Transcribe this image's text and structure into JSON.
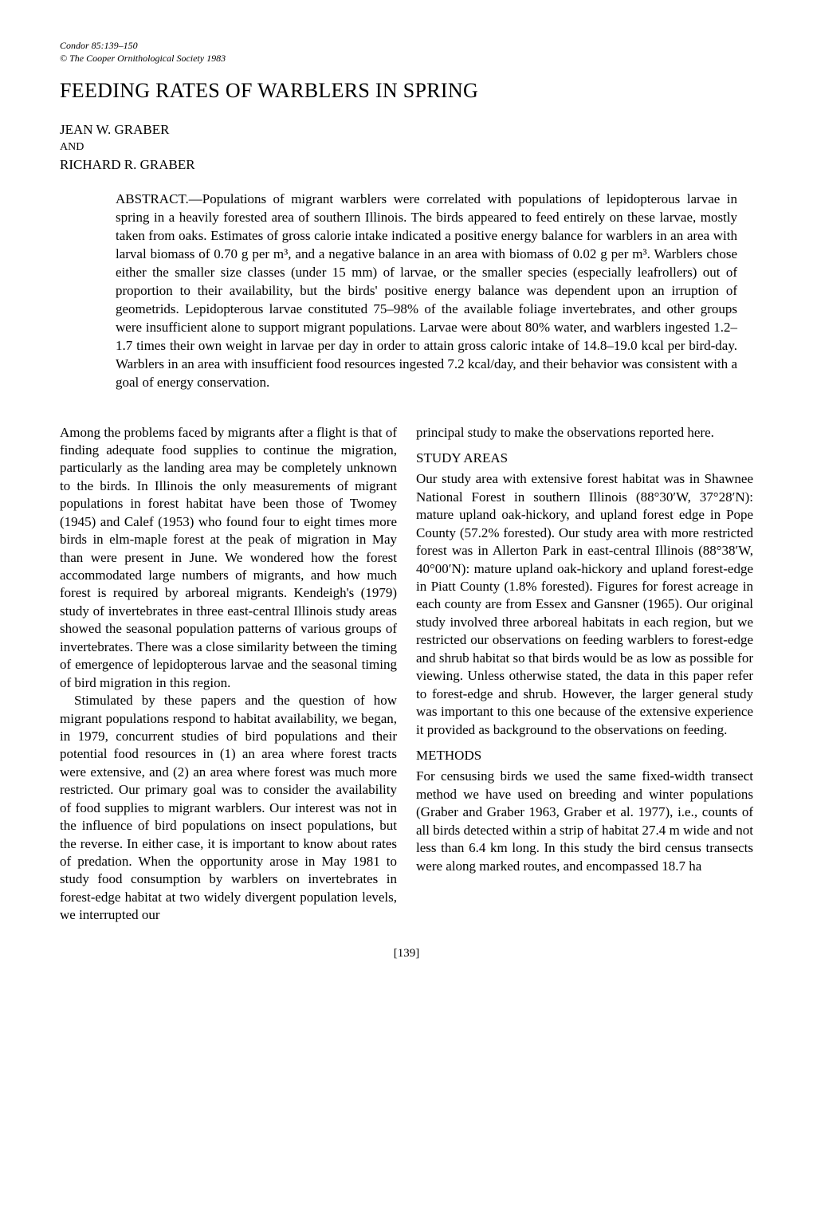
{
  "header": {
    "citation_line1": "Condor 85:139–150",
    "citation_line2": "© The Cooper Ornithological Society 1983"
  },
  "title": "FEEDING RATES OF WARBLERS IN SPRING",
  "authors": {
    "author1": "JEAN W. GRABER",
    "and": "AND",
    "author2": "RICHARD R. GRABER"
  },
  "abstract": "ABSTRACT.—Populations of migrant warblers were correlated with populations of lepidopterous larvae in spring in a heavily forested area of southern Illinois. The birds appeared to feed entirely on these larvae, mostly taken from oaks. Estimates of gross calorie intake indicated a positive energy balance for warblers in an area with larval biomass of 0.70 g per m³, and a negative balance in an area with biomass of 0.02 g per m³. Warblers chose either the smaller size classes (under 15 mm) of larvae, or the smaller species (especially leafrollers) out of proportion to their availability, but the birds' positive energy balance was dependent upon an irruption of geometrids. Lepidopterous larvae constituted 75–98% of the available foliage invertebrates, and other groups were insufficient alone to support migrant populations. Larvae were about 80% water, and warblers ingested 1.2–1.7 times their own weight in larvae per day in order to attain gross caloric intake of 14.8–19.0 kcal per bird-day. Warblers in an area with insufficient food resources ingested 7.2 kcal/day, and their behavior was consistent with a goal of energy conservation.",
  "left_column": {
    "p1": "Among the problems faced by migrants after a flight is that of finding adequate food supplies to continue the migration, particularly as the landing area may be completely unknown to the birds. In Illinois the only measurements of migrant populations in forest habitat have been those of Twomey (1945) and Calef (1953) who found four to eight times more birds in elm-maple forest at the peak of migration in May than were present in June. We wondered how the forest accommodated large numbers of migrants, and how much forest is required by arboreal migrants. Kendeigh's (1979) study of invertebrates in three east-central Illinois study areas showed the seasonal population patterns of various groups of invertebrates. There was a close similarity between the timing of emergence of lepidopterous larvae and the seasonal timing of bird migration in this region.",
    "p2": "Stimulated by these papers and the question of how migrant populations respond to habitat availability, we began, in 1979, concurrent studies of bird populations and their potential food resources in (1) an area where forest tracts were extensive, and (2) an area where forest was much more restricted. Our primary goal was to consider the availability of food supplies to migrant warblers. Our interest was not in the influence of bird populations on insect populations, but the reverse. In either case, it is important to know about rates of predation. When the opportunity arose in May 1981 to study food consumption by warblers on invertebrates in forest-edge habitat at two widely divergent population levels, we interrupted our"
  },
  "right_column": {
    "p1": "principal study to make the observations reported here.",
    "heading1": "STUDY AREAS",
    "p2": "Our study area with extensive forest habitat was in Shawnee National Forest in southern Illinois (88°30′W, 37°28′N): mature upland oak-hickory, and upland forest edge in Pope County (57.2% forested). Our study area with more restricted forest was in Allerton Park in east-central Illinois (88°38′W, 40°00′N): mature upland oak-hickory and upland forest-edge in Piatt County (1.8% forested). Figures for forest acreage in each county are from Essex and Gansner (1965). Our original study involved three arboreal habitats in each region, but we restricted our observations on feeding warblers to forest-edge and shrub habitat so that birds would be as low as possible for viewing. Unless otherwise stated, the data in this paper refer to forest-edge and shrub. However, the larger general study was important to this one because of the extensive experience it provided as background to the observations on feeding.",
    "heading2": "METHODS",
    "p3": "For censusing birds we used the same fixed-width transect method we have used on breeding and winter populations (Graber and Graber 1963, Graber et al. 1977), i.e., counts of all birds detected within a strip of habitat 27.4 m wide and not less than 6.4 km long. In this study the bird census transects were along marked routes, and encompassed 18.7 ha"
  },
  "page_number": "[139]"
}
